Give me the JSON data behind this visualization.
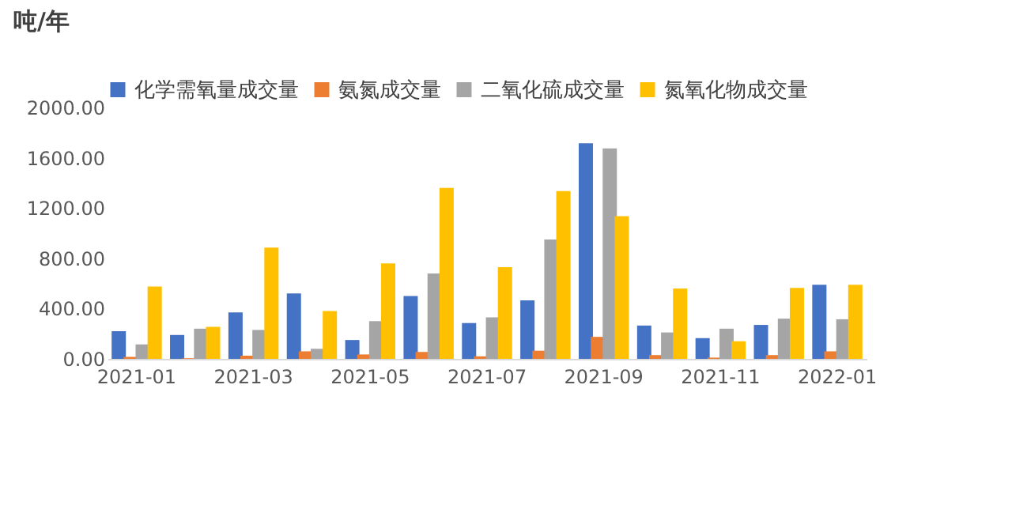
{
  "chart_data": {
    "type": "bar",
    "ylabel": "吨/年",
    "categories": [
      "2021-01",
      null,
      "2021-03",
      null,
      "2021-05",
      null,
      "2021-07",
      null,
      "2021-09",
      null,
      "2021-11",
      null,
      "2022-01"
    ],
    "series": [
      {
        "name": "化学需氧量成交量",
        "color": "#4472c4",
        "values": [
          220,
          190,
          370,
          520,
          150,
          500,
          285,
          465,
          1715,
          265,
          165,
          270,
          590
        ]
      },
      {
        "name": "氨氮成交量",
        "color": "#ed7d31",
        "values": [
          15,
          5,
          25,
          60,
          35,
          55,
          20,
          65,
          175,
          30,
          10,
          30,
          60
        ]
      },
      {
        "name": "二氧化硫成交量",
        "color": "#a5a5a5",
        "values": [
          115,
          240,
          230,
          80,
          300,
          680,
          330,
          950,
          1675,
          210,
          240,
          320,
          315
        ]
      },
      {
        "name": "氮氧化物成交量",
        "color": "#ffc000",
        "values": [
          575,
          255,
          885,
          380,
          760,
          1360,
          730,
          1335,
          1135,
          560,
          140,
          565,
          590
        ]
      }
    ],
    "ylim": [
      0,
      2000
    ],
    "yticks": [
      {
        "value": 0,
        "label": "0.00"
      },
      {
        "value": 400,
        "label": "400.00"
      },
      {
        "value": 800,
        "label": "800.00"
      },
      {
        "value": 1200,
        "label": "1200.00"
      },
      {
        "value": 1600,
        "label": "1600.00"
      },
      {
        "value": 2000,
        "label": "2000.00"
      }
    ],
    "grid": false,
    "legend": "top"
  }
}
